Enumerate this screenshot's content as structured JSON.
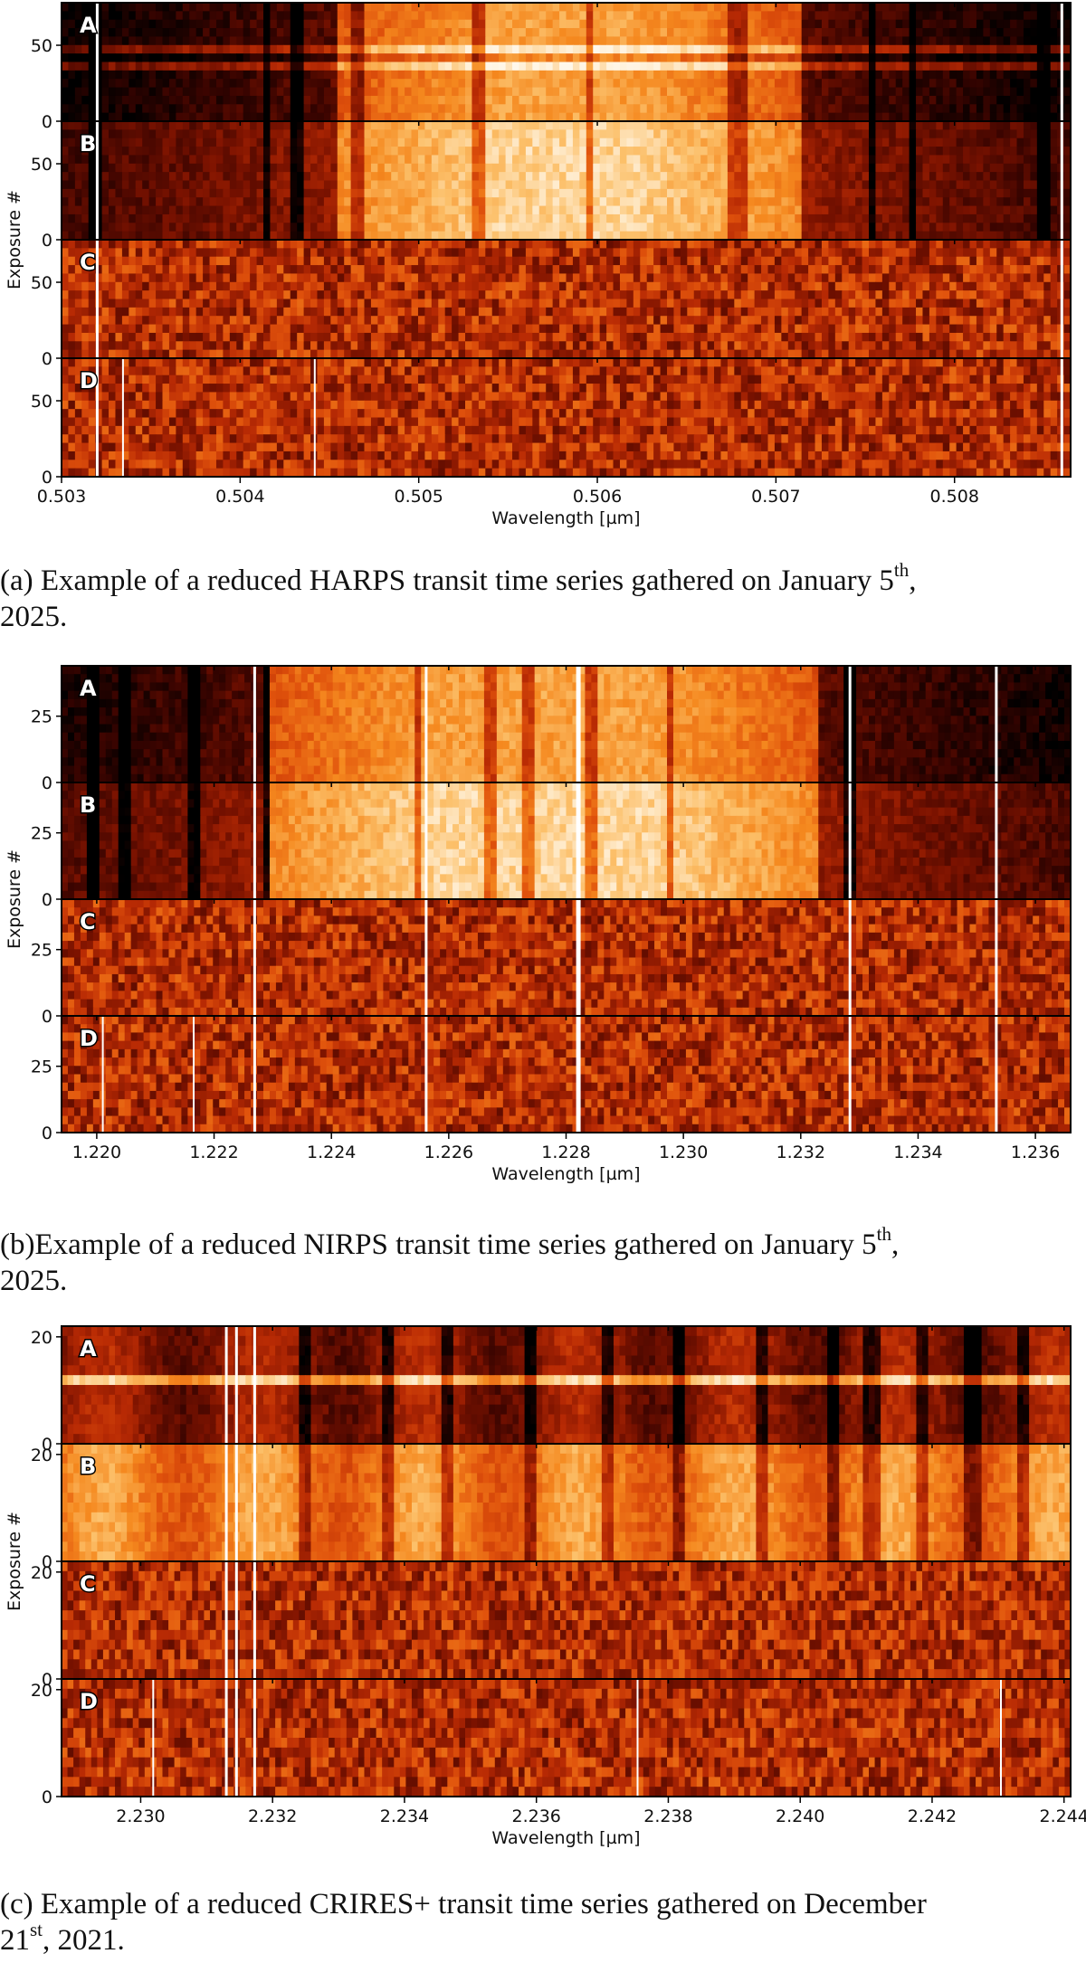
{
  "colors": {
    "cmap": [
      "#000000",
      "#3a0400",
      "#7a1200",
      "#b82a04",
      "#e0520c",
      "#f5891f",
      "#fcc06a",
      "#fff2dc",
      "#ffffff"
    ],
    "axis": "#000000",
    "text": "#111111"
  },
  "figures": [
    {
      "caption_prefix": "(a) Example of a reduced HARPS transit time series gathered on January 5",
      "caption_sup": "th",
      "caption_suffix": ", 2025.",
      "chart_data": {
        "type": "heatmap",
        "instrument": "HARPS",
        "xlabel": "Wavelength [µm]",
        "ylabel": "Exposure #",
        "xlim": [
          0.503,
          0.50865
        ],
        "xticks": [
          "0.503",
          "0.504",
          "0.505",
          "0.506",
          "0.507",
          "0.508"
        ],
        "xtick_values": [
          0.503,
          0.504,
          0.505,
          0.506,
          0.507,
          0.508
        ],
        "panels": [
          {
            "label": "A",
            "ylim": [
              0,
              78
            ],
            "yticks": [
              "0",
              "50"
            ],
            "ytick_values": [
              0,
              50
            ]
          },
          {
            "label": "B",
            "ylim": [
              0,
              78
            ],
            "yticks": [
              "0",
              "50"
            ],
            "ytick_values": [
              0,
              50
            ]
          },
          {
            "label": "C",
            "ylim": [
              0,
              78
            ],
            "yticks": [
              "0",
              "50"
            ],
            "ytick_values": [
              0,
              50
            ]
          },
          {
            "label": "D",
            "ylim": [
              0,
              78
            ],
            "yticks": [
              "0",
              "50"
            ],
            "ytick_values": [
              0,
              50
            ]
          }
        ]
      }
    },
    {
      "caption_prefix": "(b)Example of a reduced NIRPS transit time series gathered on January 5",
      "caption_sup": "th",
      "caption_suffix": ", 2025.",
      "chart_data": {
        "type": "heatmap",
        "instrument": "NIRPS",
        "xlabel": "Wavelength [µm]",
        "ylabel": "Exposure #",
        "xlim": [
          1.2194,
          1.2366
        ],
        "xticks": [
          "1.220",
          "1.222",
          "1.224",
          "1.226",
          "1.228",
          "1.230",
          "1.232",
          "1.234",
          "1.236"
        ],
        "xtick_values": [
          1.22,
          1.222,
          1.224,
          1.226,
          1.228,
          1.23,
          1.232,
          1.234,
          1.236
        ],
        "panels": [
          {
            "label": "A",
            "ylim": [
              0,
              44
            ],
            "yticks": [
              "0",
              "25"
            ],
            "ytick_values": [
              0,
              25
            ]
          },
          {
            "label": "B",
            "ylim": [
              0,
              44
            ],
            "yticks": [
              "0",
              "25"
            ],
            "ytick_values": [
              0,
              25
            ]
          },
          {
            "label": "C",
            "ylim": [
              0,
              44
            ],
            "yticks": [
              "0",
              "25"
            ],
            "ytick_values": [
              0,
              25
            ]
          },
          {
            "label": "D",
            "ylim": [
              0,
              44
            ],
            "yticks": [
              "0",
              "25"
            ],
            "ytick_values": [
              0,
              25
            ]
          }
        ]
      }
    },
    {
      "caption_prefix": "(c) Example of a reduced CRIRES+ transit time series gathered on December 21",
      "caption_sup": "st",
      "caption_suffix": ", 2021.",
      "chart_data": {
        "type": "heatmap",
        "instrument": "CRIRES+",
        "xlabel": "Wavelength [µm]",
        "ylabel": "Exposure #",
        "xlim": [
          2.2288,
          2.2441
        ],
        "xticks": [
          "2.230",
          "2.232",
          "2.234",
          "2.236",
          "2.238",
          "2.240",
          "2.242",
          "2.244"
        ],
        "xtick_values": [
          2.23,
          2.232,
          2.234,
          2.236,
          2.238,
          2.24,
          2.242,
          2.244
        ],
        "panels": [
          {
            "label": "A",
            "ylim": [
              0,
              22
            ],
            "yticks": [
              "0",
              "20"
            ],
            "ytick_values": [
              0,
              20
            ]
          },
          {
            "label": "B",
            "ylim": [
              0,
              22
            ],
            "yticks": [
              "0",
              "20"
            ],
            "ytick_values": [
              0,
              20
            ]
          },
          {
            "label": "C",
            "ylim": [
              0,
              22
            ],
            "yticks": [
              "0",
              "20"
            ],
            "ytick_values": [
              0,
              20
            ]
          },
          {
            "label": "D",
            "ylim": [
              0,
              22
            ],
            "yticks": [
              "0",
              "20"
            ],
            "ytick_values": [
              0,
              20
            ]
          }
        ]
      }
    }
  ]
}
